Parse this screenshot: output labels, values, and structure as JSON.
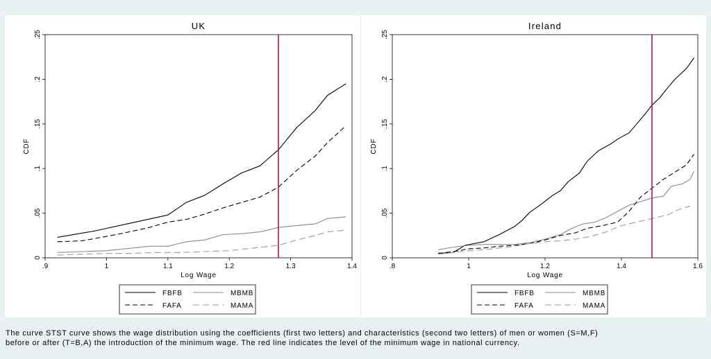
{
  "chart_data": [
    {
      "type": "line",
      "title": "UK",
      "xlabel": "Log Wage",
      "ylabel": "CDF",
      "xlim": [
        0.9,
        1.4
      ],
      "ylim": [
        0,
        0.25
      ],
      "xticks": [
        0.9,
        1.0,
        1.1,
        1.2,
        1.3,
        1.4
      ],
      "xtick_labels": [
        ".9",
        "1",
        "1.1",
        "1.2",
        "1.3",
        "1.4"
      ],
      "yticks": [
        0,
        0.05,
        0.1,
        0.15,
        0.2,
        0.25
      ],
      "ytick_labels": [
        "0",
        ".05",
        ".1",
        ".15",
        ".2",
        ".25"
      ],
      "vline": {
        "x": 1.28,
        "color": "#b0163a"
      },
      "legend_position": "bottom",
      "series": [
        {
          "name": "FBFB",
          "color": "#000000",
          "style": "solid",
          "x": [
            0.92,
            0.98,
            1.04,
            1.1,
            1.13,
            1.16,
            1.19,
            1.22,
            1.25,
            1.28,
            1.31,
            1.34,
            1.36,
            1.39
          ],
          "y": [
            0.023,
            0.03,
            0.039,
            0.048,
            0.062,
            0.07,
            0.083,
            0.095,
            0.103,
            0.121,
            0.146,
            0.165,
            0.182,
            0.195
          ]
        },
        {
          "name": "MBMB",
          "color": "#8a8a8a",
          "style": "solid",
          "x": [
            0.92,
            0.96,
            1.0,
            1.03,
            1.07,
            1.1,
            1.13,
            1.16,
            1.19,
            1.22,
            1.25,
            1.28,
            1.31,
            1.34,
            1.36,
            1.39
          ],
          "y": [
            0.006,
            0.007,
            0.008,
            0.01,
            0.013,
            0.013,
            0.018,
            0.02,
            0.026,
            0.027,
            0.029,
            0.034,
            0.036,
            0.038,
            0.044,
            0.046
          ]
        },
        {
          "name": "FAFA",
          "color": "#000000",
          "style": "dash",
          "x": [
            0.92,
            0.96,
            1.0,
            1.03,
            1.07,
            1.1,
            1.13,
            1.16,
            1.19,
            1.22,
            1.25,
            1.28,
            1.31,
            1.34,
            1.36,
            1.39
          ],
          "y": [
            0.018,
            0.019,
            0.024,
            0.028,
            0.034,
            0.04,
            0.043,
            0.049,
            0.056,
            0.062,
            0.068,
            0.079,
            0.098,
            0.114,
            0.129,
            0.148
          ]
        },
        {
          "name": "MAMA",
          "color": "#9a9a9a",
          "style": "longdash",
          "x": [
            0.92,
            0.96,
            1.0,
            1.04,
            1.08,
            1.12,
            1.16,
            1.2,
            1.24,
            1.28,
            1.31,
            1.34,
            1.36,
            1.39
          ],
          "y": [
            0.003,
            0.004,
            0.005,
            0.005,
            0.006,
            0.006,
            0.007,
            0.008,
            0.011,
            0.014,
            0.02,
            0.025,
            0.029,
            0.031
          ]
        }
      ],
      "legend": {
        "rows": [
          [
            "FBFB",
            "MBMB"
          ],
          [
            "FAFA",
            "MAMA"
          ]
        ]
      }
    },
    {
      "type": "line",
      "title": "Ireland",
      "xlabel": "Log Wage",
      "ylabel": "CDF",
      "xlim": [
        0.8,
        1.6
      ],
      "ylim": [
        0,
        0.25
      ],
      "xticks": [
        0.8,
        1.0,
        1.2,
        1.4,
        1.6
      ],
      "xtick_labels": [
        ".8",
        "1",
        "1.2",
        "1.4",
        "1.6"
      ],
      "yticks": [
        0,
        0.05,
        0.1,
        0.15,
        0.2,
        0.25
      ],
      "ytick_labels": [
        "0",
        ".05",
        ".1",
        ".15",
        ".2",
        ".25"
      ],
      "vline": {
        "x": 1.48,
        "color": "#b0163a"
      },
      "legend_position": "bottom",
      "series": [
        {
          "name": "FBFB",
          "color": "#000000",
          "style": "solid",
          "x": [
            0.92,
            0.96,
            0.99,
            1.04,
            1.08,
            1.12,
            1.14,
            1.16,
            1.19,
            1.22,
            1.24,
            1.26,
            1.29,
            1.31,
            1.34,
            1.37,
            1.39,
            1.42,
            1.44,
            1.46,
            1.48,
            1.5,
            1.52,
            1.54,
            1.56,
            1.57,
            1.59
          ],
          "y": [
            0.005,
            0.006,
            0.014,
            0.018,
            0.026,
            0.035,
            0.042,
            0.051,
            0.06,
            0.07,
            0.075,
            0.085,
            0.095,
            0.108,
            0.12,
            0.127,
            0.133,
            0.14,
            0.15,
            0.16,
            0.171,
            0.179,
            0.19,
            0.2,
            0.208,
            0.212,
            0.224
          ]
        },
        {
          "name": "MBMB",
          "color": "#8a8a8a",
          "style": "solid",
          "x": [
            0.92,
            0.96,
            1.0,
            1.04,
            1.08,
            1.12,
            1.16,
            1.2,
            1.24,
            1.27,
            1.3,
            1.33,
            1.36,
            1.39,
            1.42,
            1.45,
            1.48,
            1.51,
            1.53,
            1.56,
            1.58,
            1.59
          ],
          "y": [
            0.009,
            0.012,
            0.014,
            0.015,
            0.015,
            0.015,
            0.017,
            0.021,
            0.026,
            0.033,
            0.038,
            0.04,
            0.045,
            0.052,
            0.059,
            0.063,
            0.067,
            0.069,
            0.08,
            0.083,
            0.088,
            0.097
          ]
        },
        {
          "name": "FAFA",
          "color": "#000000",
          "style": "dash",
          "x": [
            0.92,
            0.96,
            1.0,
            1.04,
            1.08,
            1.12,
            1.16,
            1.2,
            1.24,
            1.28,
            1.31,
            1.35,
            1.39,
            1.42,
            1.45,
            1.48,
            1.51,
            1.54,
            1.57,
            1.59
          ],
          "y": [
            0.005,
            0.007,
            0.01,
            0.011,
            0.013,
            0.014,
            0.016,
            0.02,
            0.025,
            0.028,
            0.033,
            0.036,
            0.04,
            0.052,
            0.068,
            0.078,
            0.088,
            0.096,
            0.104,
            0.116
          ]
        },
        {
          "name": "MAMA",
          "color": "#9a9a9a",
          "style": "longdash",
          "x": [
            0.92,
            0.96,
            1.0,
            1.04,
            1.08,
            1.12,
            1.16,
            1.2,
            1.24,
            1.28,
            1.32,
            1.36,
            1.4,
            1.44,
            1.48,
            1.52,
            1.55,
            1.58
          ],
          "y": [
            0.004,
            0.006,
            0.008,
            0.009,
            0.011,
            0.013,
            0.016,
            0.018,
            0.019,
            0.021,
            0.024,
            0.029,
            0.036,
            0.04,
            0.044,
            0.048,
            0.054,
            0.058
          ]
        }
      ],
      "legend": {
        "rows": [
          [
            "FBFB",
            "MBMB"
          ],
          [
            "FAFA",
            "MAMA"
          ]
        ]
      }
    }
  ],
  "caption": {
    "line1": "The curve STST curve shows the wage distribution using the coefficients (first two letters) and characteristics (second two letters) of men or women (S=M,F)",
    "line2": "before or after (T=B,A) the introduction of the minimum wage. The red line indicates the level of the minimum wage in national currency."
  }
}
